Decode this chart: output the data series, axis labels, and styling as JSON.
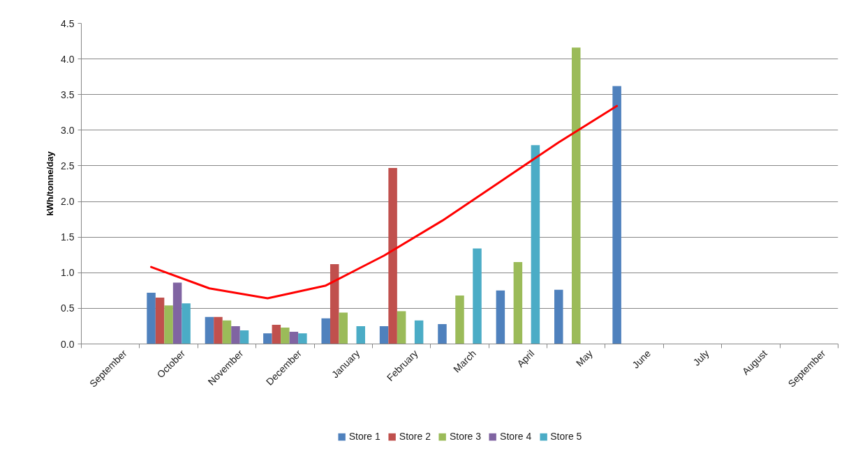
{
  "chart_data": {
    "type": "bar",
    "ylabel": "kWh/tonne/day",
    "categories": [
      "September",
      "October",
      "November",
      "December",
      "January",
      "February",
      "March",
      "April",
      "May",
      "June",
      "July",
      "August",
      "September"
    ],
    "series": [
      {
        "name": "Store 1",
        "color": "#4f81bd",
        "values": [
          null,
          0.72,
          0.38,
          0.15,
          0.36,
          0.25,
          0.28,
          0.75,
          0.76,
          3.62,
          null,
          null,
          null
        ]
      },
      {
        "name": "Store 2",
        "color": "#c0504d",
        "values": [
          null,
          0.65,
          0.38,
          0.27,
          1.12,
          2.47,
          null,
          null,
          null,
          null,
          null,
          null,
          null
        ]
      },
      {
        "name": "Store 3",
        "color": "#9bbb59",
        "values": [
          null,
          0.54,
          0.33,
          0.23,
          0.44,
          0.46,
          0.68,
          1.15,
          4.16,
          null,
          null,
          null,
          null
        ]
      },
      {
        "name": "Store 4",
        "color": "#8064a2",
        "values": [
          null,
          0.86,
          0.25,
          0.17,
          null,
          null,
          null,
          null,
          null,
          null,
          null,
          null,
          null
        ]
      },
      {
        "name": "Store 5",
        "color": "#4bacc6",
        "values": [
          null,
          0.57,
          0.19,
          0.15,
          0.25,
          0.33,
          1.34,
          2.79,
          null,
          null,
          null,
          null,
          null
        ]
      },
      {
        "type": "line",
        "color": "#ff0000",
        "values": [
          null,
          1.08,
          0.78,
          0.64,
          0.82,
          1.24,
          1.73,
          2.28,
          2.83,
          3.34,
          null,
          null,
          null
        ]
      }
    ],
    "ylim": [
      0,
      4.5
    ],
    "yticks": [
      {
        "value": 0,
        "label": "0.0"
      },
      0.5,
      {
        "value": 1,
        "label": "1.0"
      },
      1.5,
      {
        "value": 2,
        "label": "2.0"
      },
      2.5,
      {
        "value": 3,
        "label": "3.0"
      },
      3.5,
      {
        "value": 4,
        "label": "4.0"
      },
      4.5
    ],
    "grid": "y",
    "legend": "bottom"
  }
}
